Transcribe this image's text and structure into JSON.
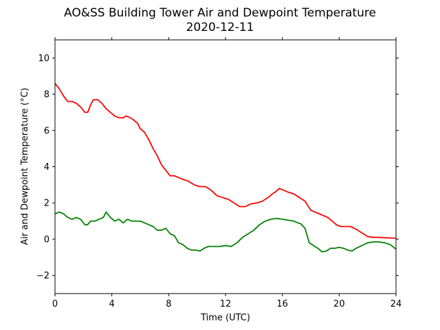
{
  "chart_data": {
    "type": "line",
    "title": "AO&SS Building Tower Air and Dewpoint Temperature",
    "subtitle": "2020-12-11",
    "xlabel": "Time (UTC)",
    "ylabel": "Air and Dewpoint Temperature (°C)",
    "xlim": [
      0,
      24
    ],
    "ylim": [
      -3,
      11
    ],
    "xticks": [
      0,
      4,
      8,
      12,
      16,
      20,
      24
    ],
    "yticks": [
      -2,
      0,
      2,
      4,
      6,
      8,
      10
    ],
    "xtick_labels": [
      "0",
      "4",
      "8",
      "12",
      "16",
      "20",
      "24"
    ],
    "ytick_labels": [
      "−2",
      "0",
      "2",
      "4",
      "6",
      "8",
      "10"
    ],
    "grid": false,
    "legend": "none",
    "series": [
      {
        "color": "#ff0000",
        "x": [
          0,
          0.3,
          0.6,
          0.9,
          1.2,
          1.5,
          1.8,
          2.1,
          2.3,
          2.5,
          2.7,
          3.0,
          3.3,
          3.6,
          3.9,
          4.2,
          4.5,
          4.8,
          5.0,
          5.3,
          5.5,
          5.8,
          6.0,
          6.3,
          6.6,
          6.9,
          7.2,
          7.5,
          7.8,
          8.1,
          8.4,
          8.7,
          9.0,
          9.4,
          9.8,
          10.2,
          10.6,
          11.0,
          11.4,
          11.8,
          12.2,
          12.6,
          13.0,
          13.4,
          13.8,
          14.2,
          14.6,
          15.0,
          15.3,
          15.5,
          15.8,
          16.1,
          16.4,
          16.8,
          17.2,
          17.6,
          18.0,
          18.3,
          18.6,
          18.9,
          19.2,
          19.5,
          19.8,
          20.1,
          20.4,
          20.8,
          21.2,
          21.6,
          22.0,
          22.4,
          22.8,
          23.2,
          23.6,
          24.0
        ],
        "values": [
          8.6,
          8.3,
          7.9,
          7.6,
          7.6,
          7.5,
          7.3,
          7.0,
          7.0,
          7.4,
          7.7,
          7.7,
          7.5,
          7.2,
          7.0,
          6.8,
          6.7,
          6.7,
          6.8,
          6.7,
          6.6,
          6.4,
          6.1,
          5.9,
          5.5,
          5.0,
          4.6,
          4.1,
          3.8,
          3.5,
          3.5,
          3.4,
          3.3,
          3.2,
          3.0,
          2.9,
          2.9,
          2.7,
          2.4,
          2.3,
          2.2,
          2.0,
          1.8,
          1.8,
          1.95,
          2.0,
          2.1,
          2.3,
          2.5,
          2.6,
          2.8,
          2.7,
          2.6,
          2.5,
          2.3,
          2.1,
          1.6,
          1.5,
          1.4,
          1.3,
          1.2,
          1.0,
          0.8,
          0.7,
          0.7,
          0.7,
          0.55,
          0.35,
          0.15,
          0.1,
          0.1,
          0.08,
          0.07,
          0.05
        ]
      },
      {
        "color": "#008000",
        "x": [
          0,
          0.3,
          0.6,
          0.9,
          1.2,
          1.5,
          1.8,
          2.1,
          2.3,
          2.5,
          2.8,
          3.1,
          3.4,
          3.6,
          3.9,
          4.2,
          4.5,
          4.8,
          5.1,
          5.4,
          5.7,
          6.0,
          6.3,
          6.6,
          6.9,
          7.2,
          7.5,
          7.8,
          8.1,
          8.4,
          8.7,
          9.0,
          9.3,
          9.6,
          9.9,
          10.2,
          10.5,
          10.8,
          11.2,
          11.6,
          12.0,
          12.4,
          12.8,
          13.2,
          13.6,
          14.0,
          14.4,
          14.8,
          15.2,
          15.6,
          16.0,
          16.4,
          16.8,
          17.1,
          17.3,
          17.6,
          17.9,
          18.2,
          18.5,
          18.8,
          19.1,
          19.4,
          19.7,
          20.0,
          20.3,
          20.6,
          20.9,
          21.2,
          21.6,
          22.0,
          22.4,
          22.8,
          23.2,
          23.6,
          24.0
        ],
        "values": [
          1.4,
          1.5,
          1.4,
          1.2,
          1.1,
          1.2,
          1.1,
          0.8,
          0.8,
          1.0,
          1.0,
          1.1,
          1.2,
          1.5,
          1.2,
          1.0,
          1.1,
          0.9,
          1.1,
          1.0,
          1.0,
          1.0,
          0.9,
          0.8,
          0.7,
          0.5,
          0.5,
          0.6,
          0.3,
          0.2,
          -0.2,
          -0.3,
          -0.5,
          -0.6,
          -0.6,
          -0.65,
          -0.5,
          -0.4,
          -0.4,
          -0.4,
          -0.35,
          -0.4,
          -0.2,
          0.1,
          0.3,
          0.5,
          0.8,
          1.0,
          1.1,
          1.15,
          1.1,
          1.05,
          1.0,
          0.9,
          0.85,
          0.6,
          -0.2,
          -0.35,
          -0.5,
          -0.7,
          -0.65,
          -0.5,
          -0.5,
          -0.45,
          -0.5,
          -0.6,
          -0.65,
          -0.5,
          -0.35,
          -0.2,
          -0.15,
          -0.15,
          -0.2,
          -0.3,
          -0.55
        ]
      }
    ]
  }
}
